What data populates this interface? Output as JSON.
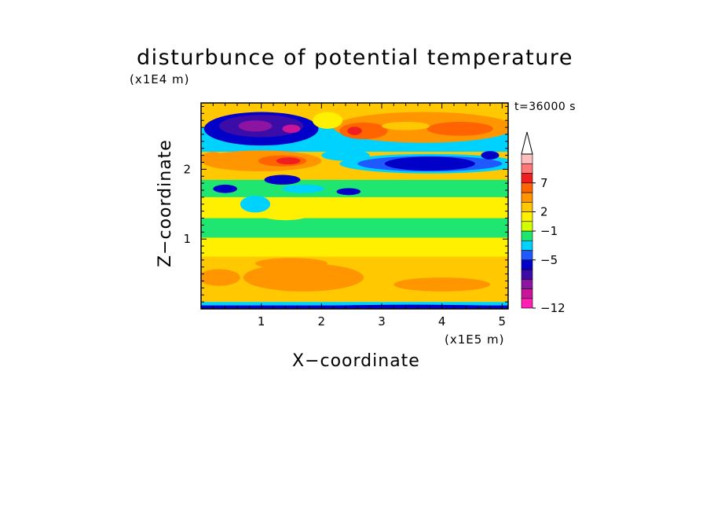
{
  "chart_data": {
    "type": "heatmap",
    "title": "disturbunce of potential temperature",
    "time_label": "t=36000 s",
    "xlabel": "X−coordinate",
    "ylabel": "Z−coordinate",
    "x_unit": "(x1E5 m)",
    "y_unit": "(x1E4 m)",
    "x_ticks": [
      "1",
      "2",
      "3",
      "4",
      "5"
    ],
    "y_ticks": [
      "1",
      "2"
    ],
    "xlim": [
      0,
      5.1
    ],
    "ylim": [
      0,
      2.95
    ],
    "colorbar_labels": [
      {
        "text": "7",
        "value": 7
      },
      {
        "text": "2",
        "value": 2
      },
      {
        "text": "−1",
        "value": -1
      },
      {
        "text": "−5",
        "value": -5
      },
      {
        "text": "−12",
        "value": -12
      }
    ],
    "colorbar_colors": [
      "#ff1fb4",
      "#c8149b",
      "#8c14a0",
      "#3c0ca8",
      "#0000c8",
      "#1e5aff",
      "#00d2ff",
      "#1ee670",
      "#d4ff00",
      "#fff000",
      "#ffc800",
      "#ff9600",
      "#ff6400",
      "#f01e1e",
      "#ff7878",
      "#ffbebe"
    ],
    "colorbar_extend": "max",
    "field_bands": [
      {
        "z": [
          0.0,
          0.05
        ],
        "level": 4
      },
      {
        "z": [
          0.05,
          0.1
        ],
        "level": 6
      },
      {
        "z": [
          0.1,
          0.4
        ],
        "level": 10
      },
      {
        "z": [
          0.4,
          0.75
        ],
        "level": 10
      },
      {
        "z": [
          0.75,
          1.02
        ],
        "level": 9
      },
      {
        "z": [
          1.02,
          1.3
        ],
        "level": 7
      },
      {
        "z": [
          1.3,
          1.6
        ],
        "level": 9
      },
      {
        "z": [
          1.6,
          1.85
        ],
        "level": 7
      },
      {
        "z": [
          1.85,
          2.25
        ],
        "level": 10
      },
      {
        "z": [
          2.25,
          2.6
        ],
        "level": 6
      },
      {
        "z": [
          2.6,
          2.95
        ],
        "level": 10
      }
    ],
    "features": [
      {
        "cx": 0.3,
        "cz": 0.45,
        "rx": 0.35,
        "rz": 0.12,
        "level": 11
      },
      {
        "cx": 1.7,
        "cz": 0.45,
        "rx": 1.0,
        "rz": 0.2,
        "level": 11
      },
      {
        "cx": 4.0,
        "cz": 0.35,
        "rx": 0.8,
        "rz": 0.1,
        "level": 11
      },
      {
        "cx": 1.5,
        "cz": 0.65,
        "rx": 0.6,
        "rz": 0.08,
        "level": 11
      },
      {
        "cx": 3.5,
        "cz": 0.02,
        "rx": 1.7,
        "rz": 0.04,
        "level": 4
      },
      {
        "cx": 0.9,
        "cz": 1.5,
        "rx": 0.25,
        "rz": 0.12,
        "level": 6
      },
      {
        "cx": 1.4,
        "cz": 1.35,
        "rx": 0.4,
        "rz": 0.08,
        "level": 9
      },
      {
        "cx": 2.7,
        "cz": 1.45,
        "rx": 0.6,
        "rz": 0.06,
        "level": 9
      },
      {
        "cx": 0.4,
        "cz": 1.72,
        "rx": 0.2,
        "rz": 0.06,
        "level": 4
      },
      {
        "cx": 1.35,
        "cz": 1.85,
        "rx": 0.3,
        "rz": 0.07,
        "level": 4
      },
      {
        "cx": 2.45,
        "cz": 1.68,
        "rx": 0.2,
        "rz": 0.05,
        "level": 4
      },
      {
        "cx": 1.7,
        "cz": 1.72,
        "rx": 0.35,
        "rz": 0.06,
        "level": 6
      },
      {
        "cx": 3.5,
        "cz": 1.72,
        "rx": 0.8,
        "rz": 0.05,
        "level": 7
      },
      {
        "cx": 1.0,
        "cz": 2.12,
        "rx": 1.0,
        "rz": 0.15,
        "level": 11
      },
      {
        "cx": 1.35,
        "cz": 2.12,
        "rx": 0.4,
        "rz": 0.08,
        "level": 12
      },
      {
        "cx": 1.45,
        "cz": 2.12,
        "rx": 0.2,
        "rz": 0.05,
        "level": 13
      },
      {
        "cx": 0.2,
        "cz": 2.15,
        "rx": 0.2,
        "rz": 0.1,
        "level": 11
      },
      {
        "cx": 2.4,
        "cz": 2.2,
        "rx": 0.4,
        "rz": 0.08,
        "level": 6
      },
      {
        "cx": 3.8,
        "cz": 2.08,
        "rx": 1.5,
        "rz": 0.14,
        "level": 6
      },
      {
        "cx": 3.8,
        "cz": 2.08,
        "rx": 1.2,
        "rz": 0.11,
        "level": 5
      },
      {
        "cx": 3.8,
        "cz": 2.08,
        "rx": 0.75,
        "rz": 0.1,
        "level": 4
      },
      {
        "cx": 4.8,
        "cz": 2.2,
        "rx": 0.15,
        "rz": 0.06,
        "level": 4
      },
      {
        "cx": 1.0,
        "cz": 2.58,
        "rx": 0.95,
        "rz": 0.24,
        "level": 4
      },
      {
        "cx": 1.0,
        "cz": 2.62,
        "rx": 0.7,
        "rz": 0.16,
        "level": 3
      },
      {
        "cx": 0.9,
        "cz": 2.62,
        "rx": 0.28,
        "rz": 0.08,
        "level": 2
      },
      {
        "cx": 1.5,
        "cz": 2.58,
        "rx": 0.15,
        "rz": 0.06,
        "level": 1
      },
      {
        "cx": 3.7,
        "cz": 2.6,
        "rx": 1.5,
        "rz": 0.22,
        "level": 11
      },
      {
        "cx": 2.7,
        "cz": 2.55,
        "rx": 0.4,
        "rz": 0.12,
        "level": 12
      },
      {
        "cx": 2.55,
        "cz": 2.55,
        "rx": 0.12,
        "rz": 0.06,
        "level": 13
      },
      {
        "cx": 4.3,
        "cz": 2.58,
        "rx": 0.55,
        "rz": 0.1,
        "level": 12
      },
      {
        "cx": 3.4,
        "cz": 2.62,
        "rx": 0.4,
        "rz": 0.06,
        "level": 10
      },
      {
        "cx": 2.1,
        "cz": 2.7,
        "rx": 0.25,
        "rz": 0.12,
        "level": 9
      }
    ]
  }
}
